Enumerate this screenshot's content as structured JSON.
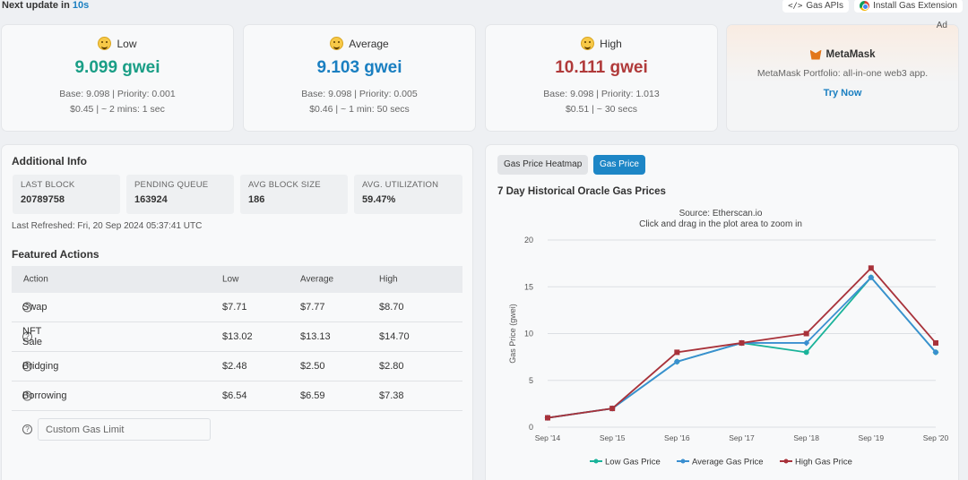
{
  "topbar": {
    "next_prefix": "Next update in",
    "next_seconds": "10s",
    "gas_apis": "Gas APIs",
    "install_ext": "Install Gas Extension"
  },
  "gas_cards": [
    {
      "label": "Low",
      "price": "9.099 gwei",
      "color": "#1a9e86",
      "base_line": "Base: 9.098 | Priority: 0.001",
      "cost_line": "$0.45 | ~ 2 mins: 1 sec"
    },
    {
      "label": "Average",
      "price": "9.103 gwei",
      "color": "#1a7fc1",
      "base_line": "Base: 9.098 | Priority: 0.005",
      "cost_line": "$0.46 | ~ 1 min: 50 secs"
    },
    {
      "label": "High",
      "price": "10.111 gwei",
      "color": "#b03a3a",
      "base_line": "Base: 9.098 | Priority: 1.013",
      "cost_line": "$0.51 | ~ 30 secs"
    }
  ],
  "ad": {
    "tag": "Ad",
    "brand": "MetaMask",
    "desc": "MetaMask Portfolio: all-in-one web3 app.",
    "cta": "Try Now"
  },
  "additional_info": {
    "title": "Additional Info",
    "stats": [
      {
        "label": "LAST BLOCK",
        "value": "20789758"
      },
      {
        "label": "PENDING QUEUE",
        "value": "163924"
      },
      {
        "label": "AVG BLOCK SIZE",
        "value": "186"
      },
      {
        "label": "AVG. UTILIZATION",
        "value": "59.47%"
      }
    ],
    "refreshed": "Last Refreshed: Fri, 20 Sep 2024 05:37:41 UTC"
  },
  "featured": {
    "title": "Featured Actions",
    "headers": [
      "Action",
      "Low",
      "Average",
      "High"
    ],
    "rows": [
      {
        "action": "Swap",
        "low": "$7.71",
        "avg": "$7.77",
        "high": "$8.70"
      },
      {
        "action": "NFT Sale",
        "low": "$13.02",
        "avg": "$13.13",
        "high": "$14.70"
      },
      {
        "action": "Bridging",
        "low": "$2.48",
        "avg": "$2.50",
        "high": "$2.80"
      },
      {
        "action": "Borrowing",
        "low": "$6.54",
        "avg": "$6.59",
        "high": "$7.38"
      }
    ],
    "custom_placeholder": "Custom Gas Limit"
  },
  "chart_panel": {
    "tab_heatmap": "Gas Price Heatmap",
    "tab_price": "Gas Price",
    "title": "7 Day Historical Oracle Gas Prices"
  },
  "chart_data": {
    "type": "line",
    "subtitle": "Source: Etherscan.io",
    "subtitle2": "Click and drag in the plot area to zoom in",
    "ylabel": "Gas Price (gwei)",
    "ylim": [
      0,
      20
    ],
    "yticks": [
      0,
      5,
      10,
      15,
      20
    ],
    "x": [
      "Sep '14",
      "Sep '15",
      "Sep '16",
      "Sep '17",
      "Sep '18",
      "Sep '19",
      "Sep '20"
    ],
    "series": [
      {
        "name": "Low Gas Price",
        "color": "#1ab39a",
        "values": [
          1,
          2,
          7,
          9,
          8,
          16,
          8
        ]
      },
      {
        "name": "Average Gas Price",
        "color": "#3a8fd0",
        "values": [
          1,
          2,
          7,
          9,
          9,
          16,
          8
        ]
      },
      {
        "name": "High Gas Price",
        "color": "#a8323a",
        "values": [
          1,
          2,
          8,
          9,
          10,
          17,
          9
        ]
      }
    ],
    "legend": "bottom"
  }
}
